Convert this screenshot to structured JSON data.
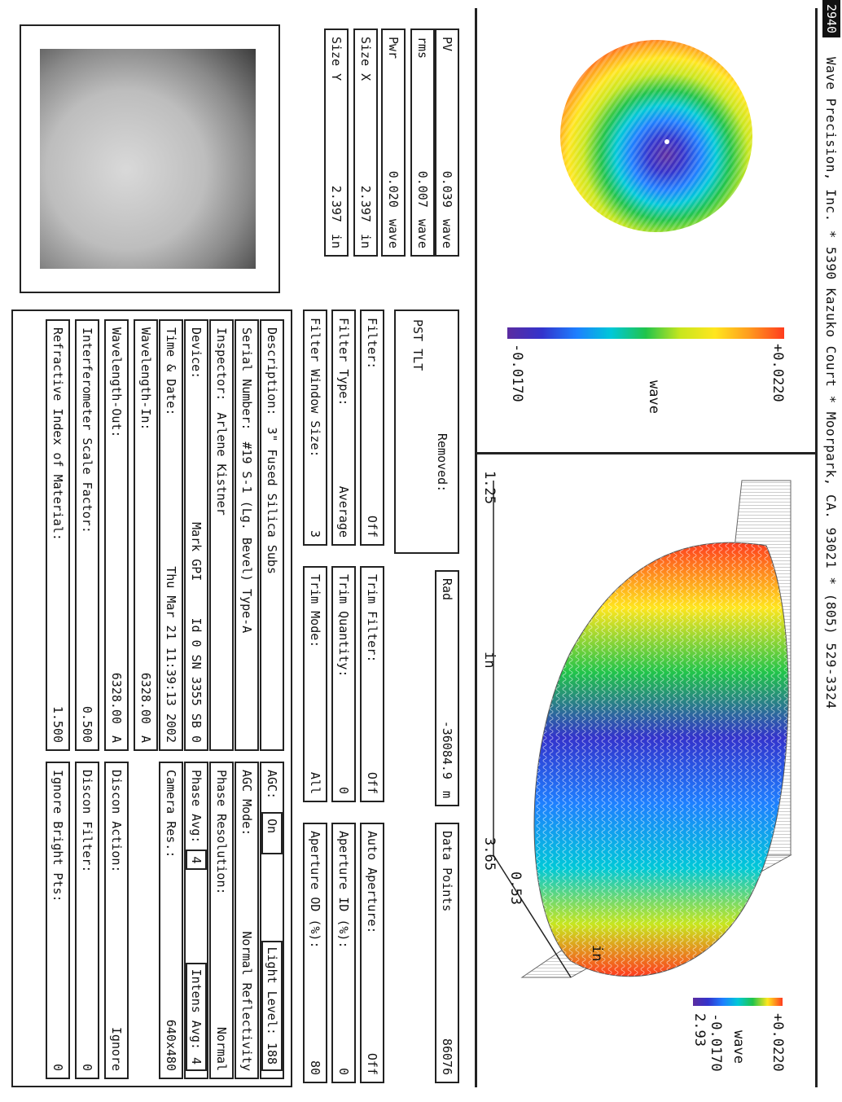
{
  "header": {
    "badge": "2940",
    "text": "Wave Precision, Inc. * 5390 Kazuko Court * Moorpark, CA. 93021 * (805) 529-3324"
  },
  "map2d": {
    "scale_max": "+0.0220",
    "scale_min": "-0.0170",
    "unit": "wave"
  },
  "plot3d": {
    "x_start": "1.25",
    "x_end": "3.65",
    "x_unit": "in",
    "y_tick": "0.53",
    "y_end": "2.93",
    "y_unit": "in",
    "scale_max": "+0.0220",
    "scale_min": "-0.0170",
    "unit": "wave"
  },
  "stats": [
    {
      "label": "PV",
      "value": "0.039",
      "unit": "wave"
    },
    {
      "label": "rms",
      "value": "0.007",
      "unit": "wave"
    },
    {
      "label": "Pwr",
      "value": "0.020",
      "unit": "wave"
    },
    {
      "label": "Size X",
      "value": "2.397",
      "unit": "in"
    },
    {
      "label": "Size Y",
      "value": "2.397",
      "unit": "in"
    }
  ],
  "removed": {
    "title": "Removed:",
    "value": "PST TLT"
  },
  "rad": {
    "label": "Rad",
    "value": "-36084.9",
    "unit": "m"
  },
  "data_points": {
    "label": "Data Points",
    "value": "86076"
  },
  "filters": {
    "filter": {
      "label": "Filter:",
      "value": "Off"
    },
    "filter_type": {
      "label": "Filter Type:",
      "value": "Average"
    },
    "filter_window": {
      "label": "Filter Window Size:",
      "value": "3"
    },
    "trim_filter": {
      "label": "Trim Filter:",
      "value": "Off"
    },
    "trim_quantity": {
      "label": "Trim Quantity:",
      "value": "0"
    },
    "trim_mode": {
      "label": "Trim Mode:",
      "value": "All"
    },
    "auto_aperture": {
      "label": "Auto Aperture:",
      "value": "Off"
    },
    "aperture_id": {
      "label": "Aperture ID (%):",
      "value": "0"
    },
    "aperture_od": {
      "label": "Aperture OD (%):",
      "value": "80"
    }
  },
  "info": {
    "description": {
      "label": "Description:",
      "value": "3\" Fused Silica Subs"
    },
    "serial": {
      "label": "Serial Number:",
      "value": "#19 S-1 (Lg. Bevel) Type-A"
    },
    "inspector": {
      "label": "Inspector:",
      "value": "Arlene Kistner"
    },
    "device": {
      "label": "Device:",
      "value": "Mark GPI     Id 0 SN 3355 SB 0"
    },
    "time": {
      "label": "Time & Date:",
      "value": "Thu Mar 21 11:39:13 2002"
    },
    "wl_in": {
      "label": "Wavelength-In:",
      "value": "6328.00",
      "unit": "A"
    },
    "wl_out": {
      "label": "Wavelength-Out:",
      "value": "6328.00",
      "unit": "A"
    },
    "scale": {
      "label": "Interferometer Scale Factor:",
      "value": "0.500"
    },
    "refr": {
      "label": "Refractive Index of Material:",
      "value": "1.500"
    },
    "agc": {
      "label": "AGC:",
      "value": "On"
    },
    "light": {
      "label": "Light Level:",
      "value": "188"
    },
    "agc_mode": {
      "label": "AGC Mode:",
      "value": "Normal Reflectivity"
    },
    "phase_res": {
      "label": "Phase Resolution:",
      "value": "Normal"
    },
    "phase_avg": {
      "label": "Phase Avg:",
      "value": "4"
    },
    "intens_avg": {
      "label": "Intens Avg:",
      "value": "4"
    },
    "camera": {
      "label": "Camera Res.:",
      "value": "640x480"
    },
    "discon_action": {
      "label": "Discon Action:",
      "value": "Ignore"
    },
    "discon_filter": {
      "label": "Discon Filter:",
      "value": "0"
    },
    "ignore_bright": {
      "label": "Ignore Bright Pts:",
      "value": "0"
    }
  },
  "colors": {
    "scale": [
      "#5b2ca0",
      "#3333cc",
      "#1e7fff",
      "#00c8d8",
      "#21c44b",
      "#c8e61e",
      "#ffe61e",
      "#ff9a1e",
      "#ff3c1e"
    ]
  }
}
